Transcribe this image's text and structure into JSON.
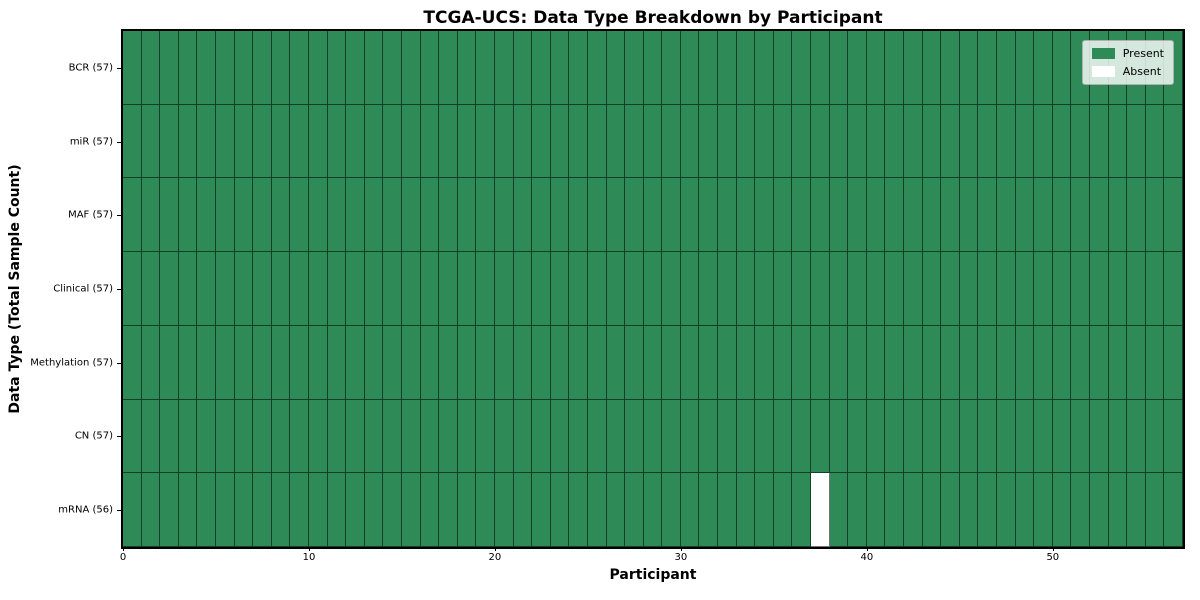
{
  "chart_data": {
    "type": "heatmap",
    "title": "TCGA-UCS: Data Type Breakdown by Participant",
    "xlabel": "Participant",
    "ylabel": "Data Type (Total Sample Count)",
    "x_range": [
      0,
      57
    ],
    "n_participants": 57,
    "x_ticks": [
      {
        "value": 0,
        "label": "0"
      },
      {
        "value": 10,
        "label": "10"
      },
      {
        "value": 20,
        "label": "20"
      },
      {
        "value": 30,
        "label": "30"
      },
      {
        "value": 40,
        "label": "40"
      },
      {
        "value": 50,
        "label": "50"
      }
    ],
    "rows": [
      {
        "label": "BCR (57)",
        "data_type": "BCR",
        "total": 57,
        "absent_participants": []
      },
      {
        "label": "miR (57)",
        "data_type": "miR",
        "total": 57,
        "absent_participants": []
      },
      {
        "label": "MAF (57)",
        "data_type": "MAF",
        "total": 57,
        "absent_participants": []
      },
      {
        "label": "Clinical (57)",
        "data_type": "Clinical",
        "total": 57,
        "absent_participants": []
      },
      {
        "label": "Methylation (57)",
        "data_type": "Methylation",
        "total": 57,
        "absent_participants": []
      },
      {
        "label": "CN (57)",
        "data_type": "CN",
        "total": 57,
        "absent_participants": []
      },
      {
        "label": "mRNA (56)",
        "data_type": "mRNA",
        "total": 56,
        "absent_participants": [
          37
        ]
      }
    ],
    "colors": {
      "present": "#2e8b57",
      "absent": "#ffffff",
      "gridline": "rgba(0,0,0,0.55)",
      "spine": "#000000"
    },
    "legend": {
      "position": "upper right",
      "items": [
        {
          "label": "Present",
          "state": "present",
          "color": "#2e8b57"
        },
        {
          "label": "Absent",
          "state": "absent",
          "color": "#ffffff"
        }
      ]
    },
    "grid": true
  }
}
